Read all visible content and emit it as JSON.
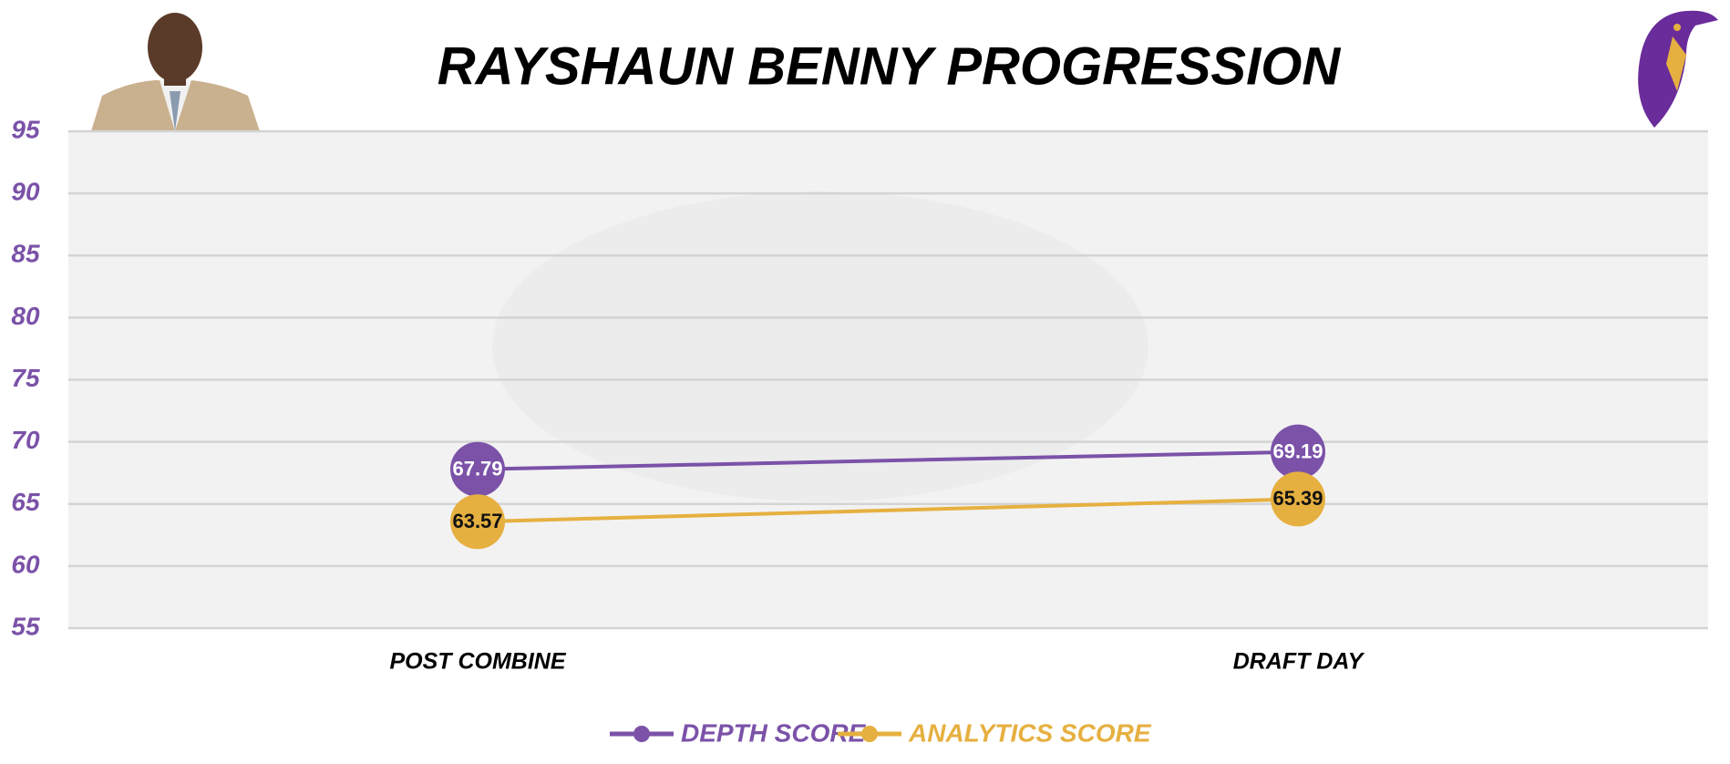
{
  "chart_data": {
    "type": "line",
    "title": "RAYSHAUN BENNY PROGRESSION",
    "categories": [
      "POST COMBINE",
      "DRAFT DAY"
    ],
    "series": [
      {
        "name": "DEPTH SCORE",
        "color": "#7b52a8",
        "label_color": "#ffffff",
        "values": [
          67.79,
          69.19
        ]
      },
      {
        "name": "ANALYTICS SCORE",
        "color": "#e6b040",
        "label_color": "#111111",
        "values": [
          63.57,
          65.39
        ]
      }
    ],
    "ylim": [
      55,
      95
    ],
    "yticks": [
      55,
      60,
      65,
      70,
      75,
      80,
      85,
      90,
      95
    ],
    "grid": true,
    "tick_color": "#7b52a8",
    "legend": "bottom"
  }
}
